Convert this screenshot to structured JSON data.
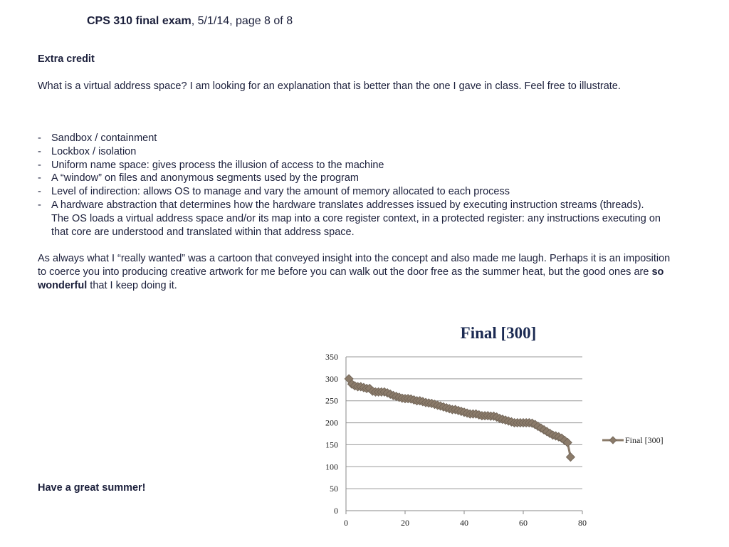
{
  "header": {
    "course": "CPS 310 final exam",
    "rest": ", 5/1/14, page 8 of 8"
  },
  "extra_credit": {
    "title": "Extra credit",
    "question": "What is a virtual address space?  I am looking for an explanation that is better than the one I gave in class.  Feel free to illustrate."
  },
  "answers": [
    "Sandbox / containment",
    "Lockbox / isolation",
    "Uniform name space: gives process the illusion of access to the machine",
    "A “window” on files and anonymous segments used by the program",
    "Level of indirection: allows OS to manage and vary the amount of memory allocated to each process",
    "A hardware abstraction that determines how the hardware translates addresses issued by executing instruction streams (threads).  The OS loads a virtual address space and/or its map into a core register context, in a protected register: any instructions executing on that core are understood and translated within that address space."
  ],
  "closing": {
    "before": "As always what I “really wanted” was a cartoon that conveyed insight into the concept and also made me laugh.  Perhaps it is an imposition to coerce you into producing creative artwork for me before you can walk out the door free as the summer heat, but the good ones are ",
    "bold": "so wonderful",
    "after": " that I keep doing it."
  },
  "farewell": "Have a great summer!",
  "chart_data": {
    "type": "line",
    "title": "Final [300]",
    "legend": "right",
    "xlim": [
      0,
      80
    ],
    "ylim": [
      0,
      350
    ],
    "xticks": [
      0,
      20,
      40,
      60,
      80
    ],
    "yticks": [
      0,
      50,
      100,
      150,
      200,
      250,
      300,
      350
    ],
    "grid": "horizontal",
    "series": [
      {
        "name": "Final [300]",
        "color": "#8b7b6a",
        "x": [
          1,
          2,
          3,
          4,
          5,
          6,
          7,
          8,
          9,
          10,
          11,
          12,
          13,
          14,
          15,
          16,
          17,
          18,
          19,
          20,
          21,
          22,
          23,
          24,
          25,
          26,
          27,
          28,
          29,
          30,
          31,
          32,
          33,
          34,
          35,
          36,
          37,
          38,
          39,
          40,
          41,
          42,
          43,
          44,
          45,
          46,
          47,
          48,
          49,
          50,
          51,
          52,
          53,
          54,
          55,
          56,
          57,
          58,
          59,
          60,
          61,
          62,
          63,
          64,
          65,
          66,
          67,
          68,
          69,
          70,
          71,
          72,
          73,
          74,
          75,
          76
        ],
        "values": [
          300,
          288,
          284,
          282,
          282,
          280,
          278,
          278,
          272,
          270,
          270,
          270,
          270,
          268,
          265,
          262,
          260,
          258,
          256,
          255,
          255,
          254,
          252,
          250,
          250,
          248,
          246,
          245,
          244,
          242,
          240,
          238,
          236,
          234,
          232,
          230,
          230,
          228,
          226,
          224,
          222,
          220,
          220,
          220,
          218,
          216,
          216,
          216,
          215,
          215,
          213,
          210,
          208,
          206,
          204,
          202,
          200,
          200,
          200,
          200,
          200,
          200,
          199,
          196,
          192,
          188,
          184,
          180,
          176,
          172,
          170,
          168,
          165,
          160,
          155,
          122
        ]
      }
    ]
  }
}
